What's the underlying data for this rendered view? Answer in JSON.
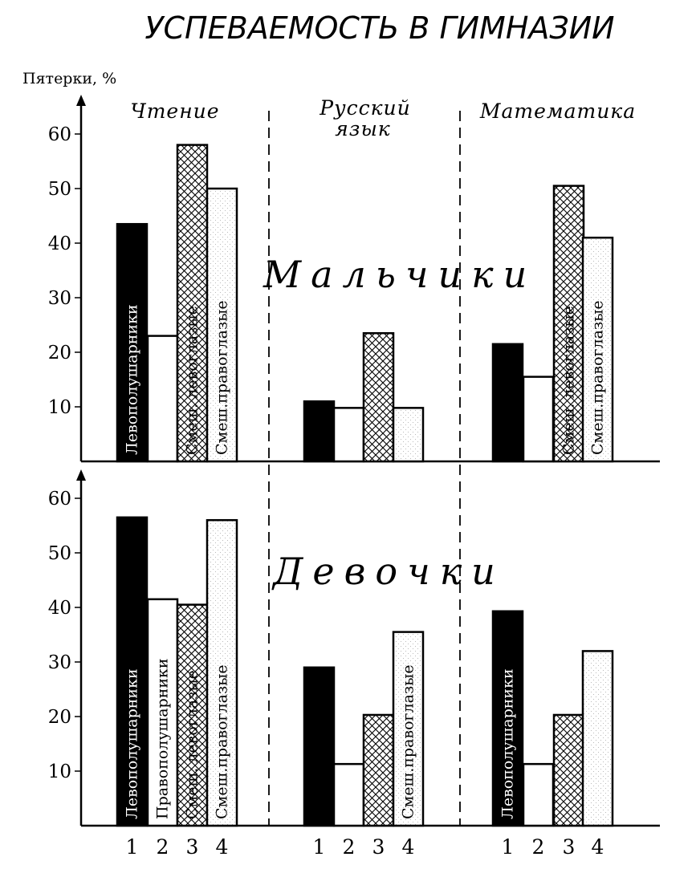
{
  "chart_data": {
    "type": "bar",
    "title": "УСПЕВАЕМОСТЬ В ГИМНАЗИИ",
    "ylabel": "Пятерки, %",
    "ylim": [
      0,
      60
    ],
    "yticks": [
      10,
      20,
      30,
      40,
      50,
      60
    ],
    "subjects": [
      "Чтение",
      "Русский язык",
      "Математика"
    ],
    "x_numbers": [
      "1",
      "2",
      "3",
      "4"
    ],
    "panels": [
      {
        "name": "Мальчики",
        "groups": [
          {
            "subject": "Чтение",
            "values": [
              43.5,
              23,
              58,
              50
            ],
            "bar_labels": [
              "Левополушарники",
              "",
              "Смеш. левоглазые",
              "Смеш.правоглазые"
            ]
          },
          {
            "subject": "Русский язык",
            "values": [
              11,
              9.8,
              23.5,
              9.8
            ],
            "bar_labels": [
              "",
              "",
              "",
              ""
            ]
          },
          {
            "subject": "Математика",
            "values": [
              21.5,
              15.5,
              50.5,
              41
            ],
            "bar_labels": [
              "",
              "",
              "Смеш. левоглазые",
              "Смеш.правоглазые"
            ]
          }
        ]
      },
      {
        "name": "Девочки",
        "groups": [
          {
            "subject": "Чтение",
            "values": [
              56.5,
              41.5,
              40.5,
              56
            ],
            "bar_labels": [
              "Левополушарники",
              "Правополушарники",
              "Смеш. левоглазые",
              "Смеш.правоглазые"
            ]
          },
          {
            "subject": "Русский язык",
            "values": [
              29,
              11.3,
              20.3,
              35.5
            ],
            "bar_labels": [
              "",
              "",
              "",
              "Смеш.правоглазые"
            ]
          },
          {
            "subject": "Математика",
            "values": [
              39.3,
              11.3,
              20.3,
              32
            ],
            "bar_labels": [
              "Левополушарники",
              "",
              "",
              ""
            ]
          }
        ]
      }
    ],
    "series_fills": [
      "#000000",
      "#ffffff",
      "crosshatch",
      "stipple"
    ]
  }
}
